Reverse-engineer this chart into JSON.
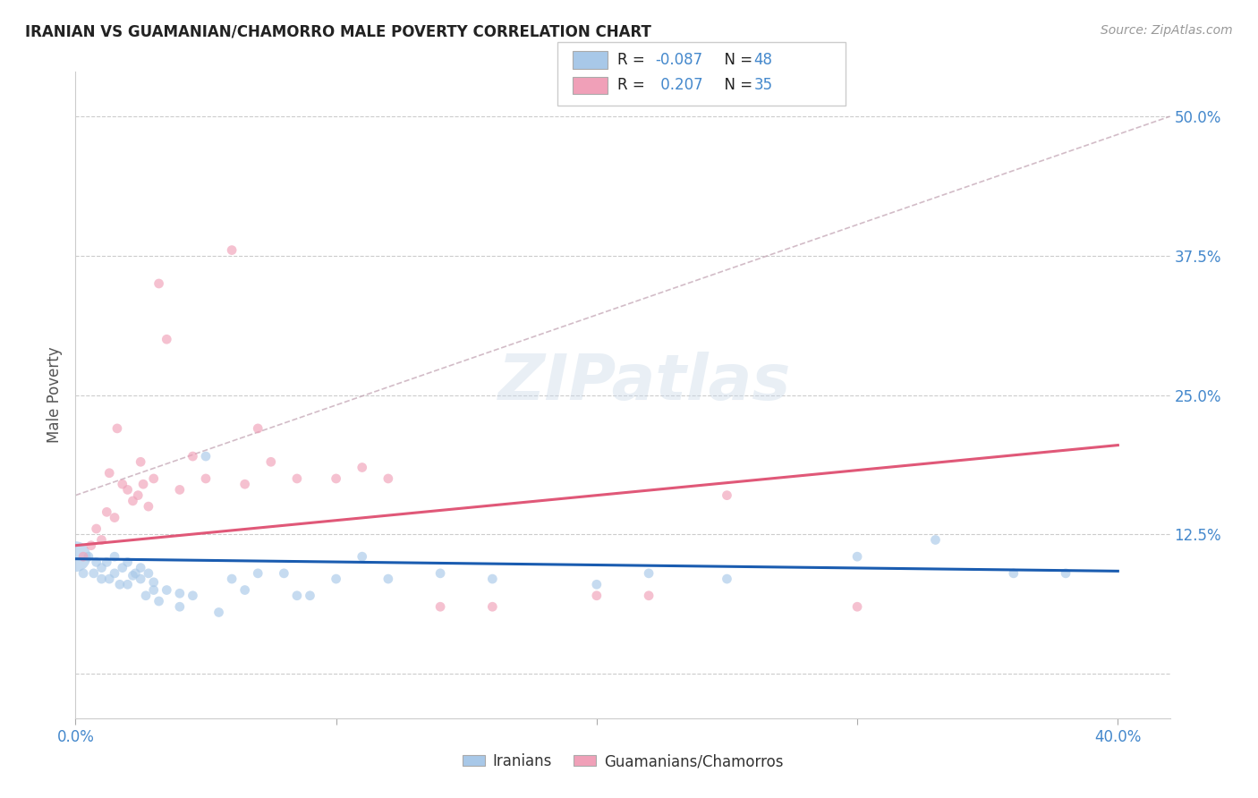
{
  "title": "IRANIAN VS GUAMANIAN/CHAMORRO MALE POVERTY CORRELATION CHART",
  "source": "Source: ZipAtlas.com",
  "ylabel": "Male Poverty",
  "xlim": [
    0.0,
    0.42
  ],
  "ylim": [
    -0.04,
    0.54
  ],
  "bg_color": "#ffffff",
  "grid_color": "#cccccc",
  "iranians_R": -0.087,
  "iranians_N": 48,
  "guam_R": 0.207,
  "guam_N": 35,
  "blue_color": "#a8c8e8",
  "pink_color": "#f0a0b8",
  "blue_line_color": "#1a5cb0",
  "pink_line_color": "#e05878",
  "axis_label_color": "#4488cc",
  "ref_line_color": "#c0a0b0",
  "iranians_x": [
    0.0,
    0.003,
    0.005,
    0.007,
    0.008,
    0.01,
    0.01,
    0.012,
    0.013,
    0.015,
    0.015,
    0.017,
    0.018,
    0.02,
    0.02,
    0.022,
    0.023,
    0.025,
    0.025,
    0.027,
    0.028,
    0.03,
    0.03,
    0.032,
    0.035,
    0.04,
    0.04,
    0.045,
    0.05,
    0.055,
    0.06,
    0.065,
    0.07,
    0.08,
    0.085,
    0.09,
    0.1,
    0.11,
    0.12,
    0.14,
    0.16,
    0.2,
    0.22,
    0.25,
    0.3,
    0.33,
    0.36,
    0.38
  ],
  "iranians_y": [
    0.105,
    0.09,
    0.105,
    0.09,
    0.1,
    0.085,
    0.095,
    0.1,
    0.085,
    0.105,
    0.09,
    0.08,
    0.095,
    0.08,
    0.1,
    0.088,
    0.09,
    0.085,
    0.095,
    0.07,
    0.09,
    0.075,
    0.082,
    0.065,
    0.075,
    0.06,
    0.072,
    0.07,
    0.195,
    0.055,
    0.085,
    0.075,
    0.09,
    0.09,
    0.07,
    0.07,
    0.085,
    0.105,
    0.085,
    0.09,
    0.085,
    0.08,
    0.09,
    0.085,
    0.105,
    0.12,
    0.09,
    0.09
  ],
  "iranians_sizes": [
    600,
    60,
    60,
    60,
    60,
    60,
    60,
    60,
    60,
    60,
    60,
    60,
    60,
    60,
    60,
    60,
    60,
    60,
    60,
    60,
    60,
    60,
    60,
    60,
    60,
    60,
    60,
    60,
    60,
    60,
    60,
    60,
    60,
    60,
    60,
    60,
    60,
    60,
    60,
    60,
    60,
    60,
    60,
    60,
    60,
    60,
    60,
    60
  ],
  "guam_x": [
    0.003,
    0.006,
    0.008,
    0.01,
    0.012,
    0.013,
    0.015,
    0.016,
    0.018,
    0.02,
    0.022,
    0.024,
    0.025,
    0.026,
    0.028,
    0.03,
    0.032,
    0.035,
    0.04,
    0.045,
    0.05,
    0.06,
    0.065,
    0.07,
    0.075,
    0.085,
    0.1,
    0.11,
    0.12,
    0.14,
    0.16,
    0.2,
    0.22,
    0.25,
    0.3
  ],
  "guam_y": [
    0.105,
    0.115,
    0.13,
    0.12,
    0.145,
    0.18,
    0.14,
    0.22,
    0.17,
    0.165,
    0.155,
    0.16,
    0.19,
    0.17,
    0.15,
    0.175,
    0.35,
    0.3,
    0.165,
    0.195,
    0.175,
    0.38,
    0.17,
    0.22,
    0.19,
    0.175,
    0.175,
    0.185,
    0.175,
    0.06,
    0.06,
    0.07,
    0.07,
    0.16,
    0.06
  ],
  "guam_sizes": [
    60,
    60,
    60,
    60,
    60,
    60,
    60,
    60,
    60,
    60,
    60,
    60,
    60,
    60,
    60,
    60,
    60,
    60,
    60,
    60,
    60,
    60,
    60,
    60,
    60,
    60,
    60,
    60,
    60,
    60,
    60,
    60,
    60,
    60,
    60
  ],
  "blue_trend_x0": 0.0,
  "blue_trend_y0": 0.103,
  "blue_trend_x1": 0.4,
  "blue_trend_y1": 0.092,
  "pink_trend_x0": 0.0,
  "pink_trend_y0": 0.115,
  "pink_trend_x1": 0.4,
  "pink_trend_y1": 0.205,
  "ref_line_x0": 0.0,
  "ref_line_y0": 0.16,
  "ref_line_x1": 0.42,
  "ref_line_y1": 0.5
}
